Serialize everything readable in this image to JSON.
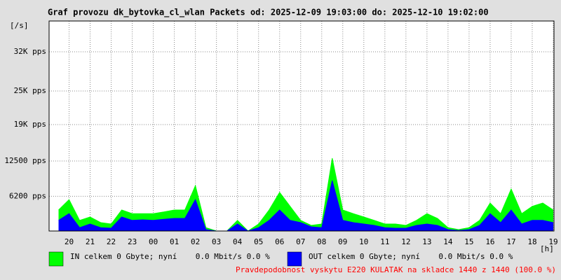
{
  "chart_data": {
    "type": "area",
    "title": "Graf provozu dk_bytovka_cl_wlan Packets od: 2025-12-09 19:03:00 do: 2025-12-10 19:02:00",
    "y_label": "[/s]",
    "x_label": "[h]",
    "note": "Pravdepodobnost vyskytu E220 KULATAK na skladce 1440 z 1440 (100.0 %)",
    "note_color": "#ff0000",
    "xlim": [
      19.05,
      43.0333
    ],
    "ylim": [
      0,
      37500
    ],
    "grid": true,
    "xticks": [
      20,
      21,
      22,
      23,
      {
        "value": 24,
        "label": "00"
      },
      {
        "value": 25,
        "label": "01"
      },
      {
        "value": 26,
        "label": "02"
      },
      {
        "value": 27,
        "label": "03"
      },
      {
        "value": 28,
        "label": "04"
      },
      {
        "value": 29,
        "label": "05"
      },
      {
        "value": 30,
        "label": "06"
      },
      {
        "value": 31,
        "label": "07"
      },
      {
        "value": 32,
        "label": "08"
      },
      {
        "value": 33,
        "label": "09"
      },
      {
        "value": 34,
        "label": "10"
      },
      {
        "value": 35,
        "label": "11"
      },
      {
        "value": 36,
        "label": "12"
      },
      {
        "value": 37,
        "label": "13"
      },
      {
        "value": 38,
        "label": "14"
      },
      {
        "value": 39,
        "label": "15"
      },
      {
        "value": 40,
        "label": "16"
      },
      {
        "value": 41,
        "label": "17"
      },
      {
        "value": 42,
        "label": "18"
      },
      {
        "value": 43,
        "label": "19"
      }
    ],
    "yticks": [
      {
        "value": 6200,
        "label": "6200 pps"
      },
      {
        "value": 12500,
        "label": "12500 pps"
      },
      {
        "value": 19000,
        "label": "19K pps"
      },
      {
        "value": 25000,
        "label": "25K pps"
      },
      {
        "value": 32000,
        "label": "32K pps"
      }
    ],
    "x": [
      19.5,
      20,
      20.5,
      21,
      21.5,
      22,
      22.5,
      23,
      23.5,
      24,
      24.5,
      25,
      25.5,
      26,
      26.5,
      27,
      27.5,
      28,
      28.5,
      29,
      29.5,
      30,
      30.5,
      31,
      31.5,
      32,
      32.5,
      33,
      33.5,
      34,
      34.5,
      35,
      35.5,
      36,
      36.5,
      37,
      37.5,
      38,
      38.5,
      39,
      39.5,
      40,
      40.5,
      41,
      41.5,
      42,
      42.5,
      43
    ],
    "series": [
      {
        "name": "IN celkem 0 Gbyte; nyní    0.0 Mbit/s 0.0 %",
        "color": "#00ff00",
        "values": [
          3750,
          5600,
          1900,
          2500,
          1500,
          1250,
          3750,
          3100,
          3100,
          3100,
          3400,
          3750,
          3750,
          8100,
          600,
          0,
          0,
          1900,
          0,
          1250,
          3750,
          6900,
          4400,
          1900,
          1000,
          1250,
          13000,
          3750,
          3100,
          2500,
          1900,
          1250,
          1250,
          1000,
          1900,
          3100,
          2250,
          600,
          250,
          600,
          1900,
          5000,
          3100,
          7500,
          3100,
          4400,
          5000,
          3750
        ]
      },
      {
        "name": "OUT celkem 0 Gbyte; nyní    0.0 Mbit/s 0.0 %",
        "color": "#0000ff",
        "values": [
          1900,
          3100,
          600,
          1250,
          600,
          500,
          2500,
          1900,
          2000,
          1900,
          2100,
          2250,
          2250,
          5600,
          250,
          0,
          0,
          1250,
          0,
          600,
          1900,
          3750,
          1900,
          1500,
          750,
          600,
          9000,
          1900,
          1500,
          1250,
          1000,
          600,
          500,
          500,
          1000,
          1250,
          1000,
          250,
          100,
          250,
          1000,
          3100,
          1500,
          3750,
          1250,
          1900,
          1900,
          1500
        ]
      }
    ]
  }
}
